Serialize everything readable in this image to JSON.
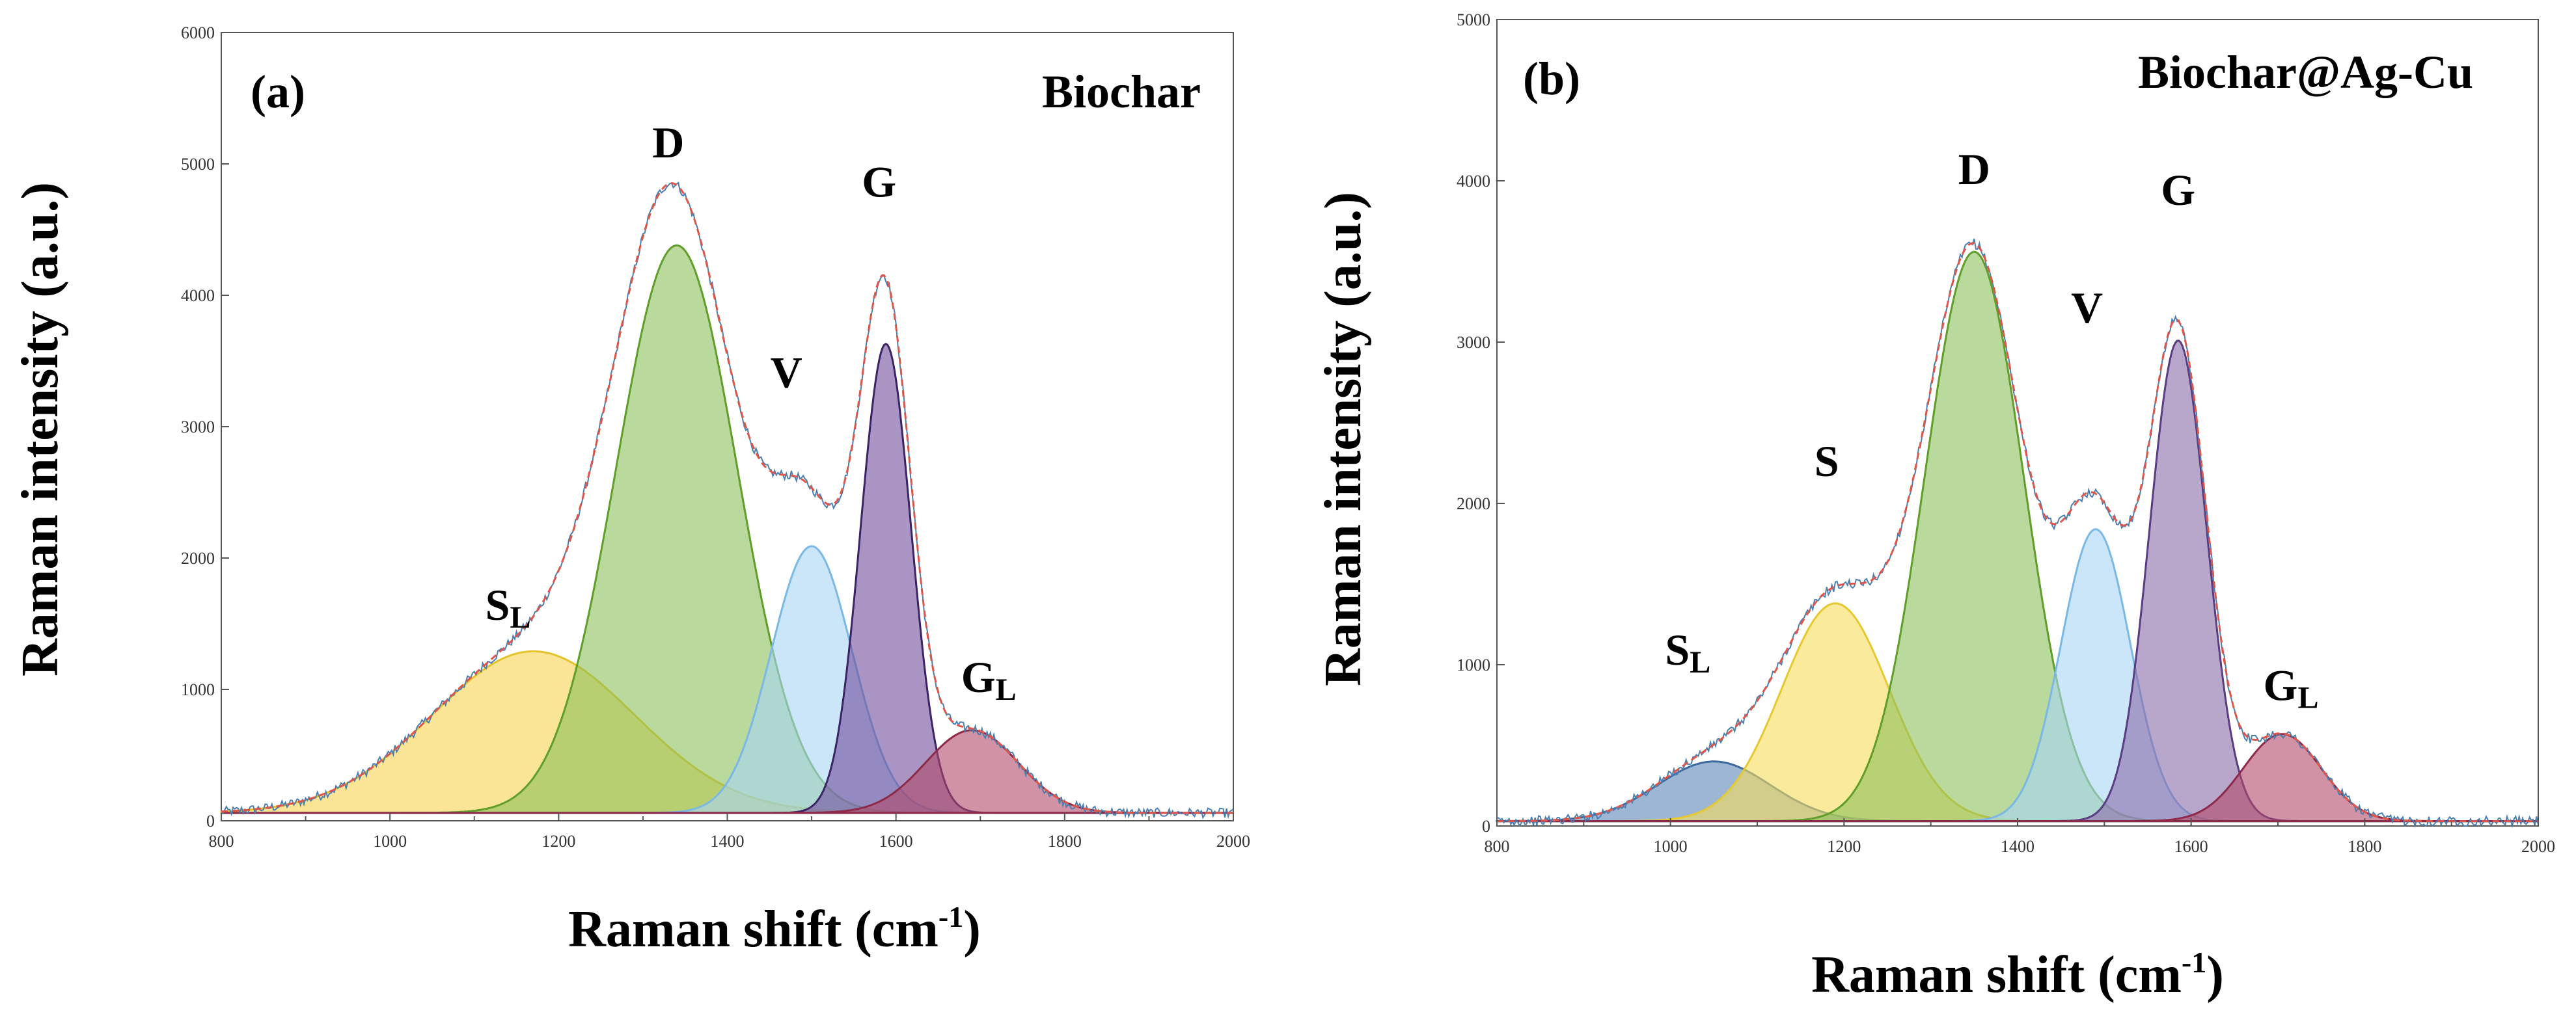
{
  "chart_data": [
    {
      "type": "line",
      "panel_label": "(a)",
      "title": "Biochar",
      "xlabel": "Raman shift (cm",
      "xlabel_sup": "-1",
      "xlabel_close": ")",
      "ylabel": "Raman intensity (a.u.)",
      "xlim": [
        800,
        2000
      ],
      "ylim": [
        0,
        6000
      ],
      "xticks": [
        800,
        1000,
        1200,
        1400,
        1600,
        1800,
        2000
      ],
      "yticks": [
        0,
        1000,
        2000,
        3000,
        4000,
        5000,
        6000
      ],
      "baseline": 60,
      "fitted_peaks": [
        {
          "name": "SL",
          "label_main": "S",
          "label_sub": "L",
          "center": 1170,
          "amplitude": 1230,
          "width": 120,
          "fill": "#f5d34f",
          "edge": "#e6c22a"
        },
        {
          "name": "D",
          "label_main": "D",
          "label_sub": "",
          "center": 1340,
          "amplitude": 4320,
          "width": 72,
          "fill": "#8cc05a",
          "edge": "#5f9e2a"
        },
        {
          "name": "V",
          "label_main": "V",
          "label_sub": "",
          "center": 1500,
          "amplitude": 2030,
          "width": 48,
          "fill": "#a9d6f5",
          "edge": "#7ab8e6"
        },
        {
          "name": "G",
          "label_main": "G",
          "label_sub": "",
          "center": 1588,
          "amplitude": 3570,
          "width": 30,
          "fill": "#6f4c9b",
          "edge": "#3b2466"
        },
        {
          "name": "GL",
          "label_main": "G",
          "label_sub": "L",
          "center": 1690,
          "amplitude": 630,
          "width": 55,
          "fill": "#b04a68",
          "edge": "#8e2a48"
        }
      ],
      "label_positions_data": [
        {
          "name": "SL",
          "x": 1140,
          "y": 1530
        },
        {
          "name": "D",
          "x": 1330,
          "y": 5050
        },
        {
          "name": "V",
          "x": 1470,
          "y": 3300
        },
        {
          "name": "G",
          "x": 1580,
          "y": 4750
        },
        {
          "name": "GL",
          "x": 1710,
          "y": 980
        }
      ],
      "colors": {
        "measured": "#4a7fb0",
        "fit": "#e0554a"
      }
    },
    {
      "type": "line",
      "panel_label": "(b)",
      "title": "Biochar@Ag-Cu",
      "xlabel": "Raman shift (cm",
      "xlabel_sup": "-1",
      "xlabel_close": ")",
      "ylabel": "Raman intensity (a.u.)",
      "xlim": [
        800,
        2000
      ],
      "ylim": [
        0,
        5000
      ],
      "xticks": [
        800,
        1000,
        1200,
        1400,
        1600,
        1800,
        2000
      ],
      "yticks": [
        0,
        1000,
        2000,
        3000,
        4000,
        5000
      ],
      "baseline": 30,
      "fitted_peaks": [
        {
          "name": "SL",
          "label_main": "S",
          "label_sub": "L",
          "center": 1050,
          "amplitude": 370,
          "width": 65,
          "fill": "#5b86b8",
          "edge": "#3d6a9e"
        },
        {
          "name": "S",
          "label_main": "S",
          "label_sub": "",
          "center": 1190,
          "amplitude": 1350,
          "width": 62,
          "fill": "#f5dc5a",
          "edge": "#e6c830"
        },
        {
          "name": "D",
          "label_main": "D",
          "label_sub": "",
          "center": 1350,
          "amplitude": 3530,
          "width": 57,
          "fill": "#8cc05a",
          "edge": "#5f9e2a"
        },
        {
          "name": "V",
          "label_main": "V",
          "label_sub": "",
          "center": 1490,
          "amplitude": 1810,
          "width": 40,
          "fill": "#a9d6f5",
          "edge": "#7ab8e6"
        },
        {
          "name": "G",
          "label_main": "G",
          "label_sub": "",
          "center": 1585,
          "amplitude": 2980,
          "width": 33,
          "fill": "#8a6aa8",
          "edge": "#5a3c82"
        },
        {
          "name": "GL",
          "label_main": "G",
          "label_sub": "L",
          "center": 1705,
          "amplitude": 540,
          "width": 45,
          "fill": "#b04a68",
          "edge": "#8e2a48"
        }
      ],
      "label_positions_data": [
        {
          "name": "SL",
          "x": 1020,
          "y": 1000
        },
        {
          "name": "S",
          "x": 1180,
          "y": 2170
        },
        {
          "name": "D",
          "x": 1350,
          "y": 3980
        },
        {
          "name": "V",
          "x": 1480,
          "y": 3120
        },
        {
          "name": "G",
          "x": 1585,
          "y": 3850
        },
        {
          "name": "GL",
          "x": 1715,
          "y": 780
        }
      ],
      "colors": {
        "measured": "#4a7fb0",
        "fit": "#e0554a"
      }
    }
  ]
}
